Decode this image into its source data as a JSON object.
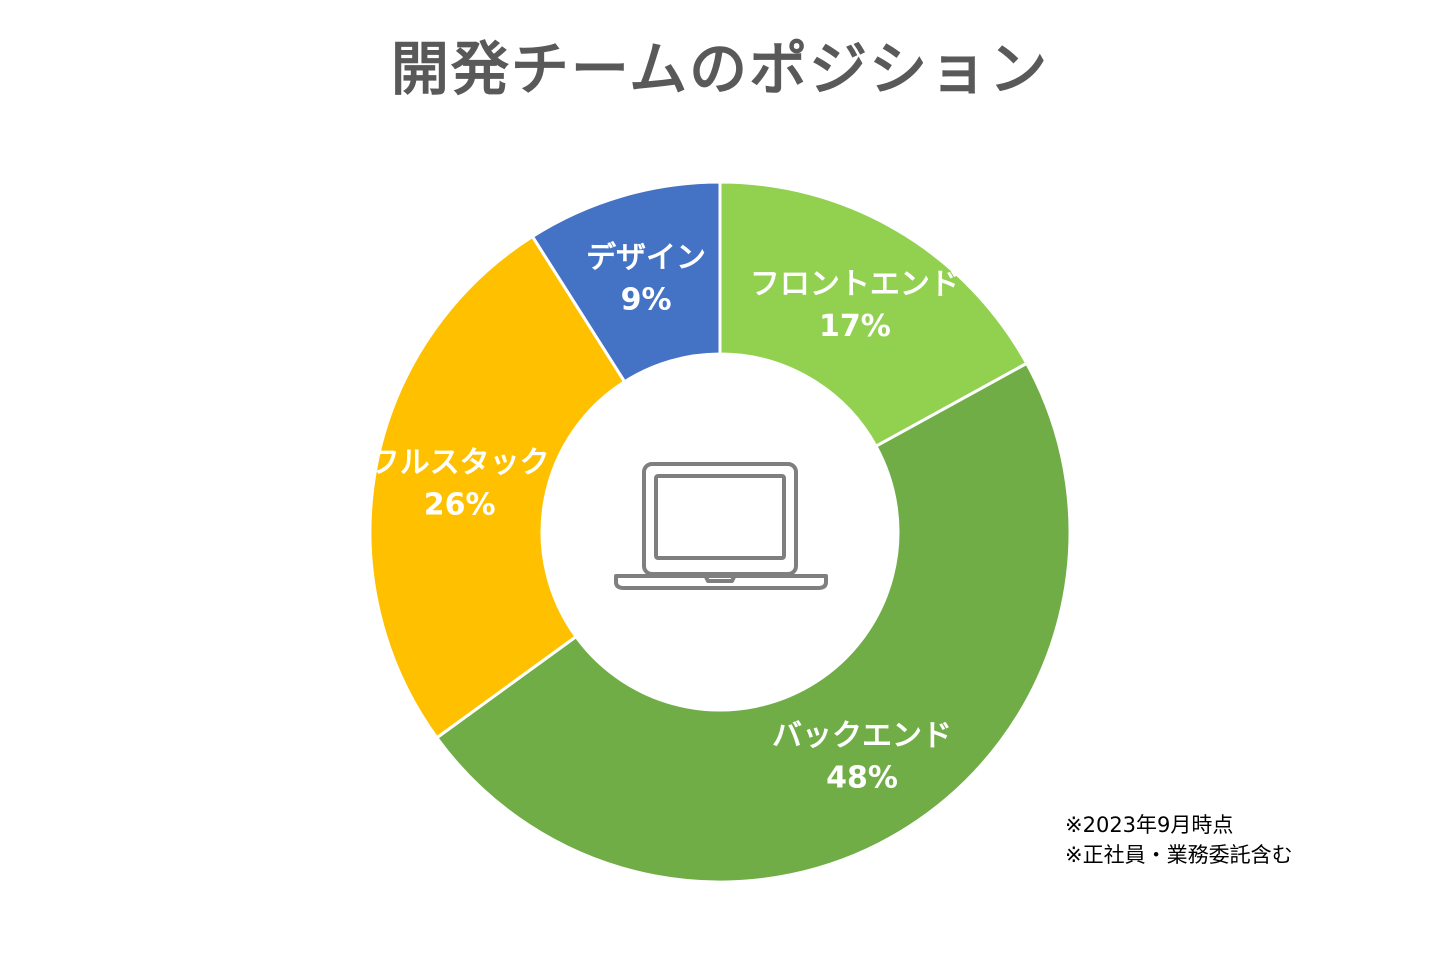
{
  "chart_data": {
    "type": "pie",
    "variant": "donut",
    "title": "開発チームのポジション",
    "slices": [
      {
        "label": "フロントエンド",
        "value": 17,
        "value_label": "17%",
        "color": "#92D050"
      },
      {
        "label": "バックエンド",
        "value": 48,
        "value_label": "48%",
        "color": "#70AD47"
      },
      {
        "label": "フルスタック",
        "value": 26,
        "value_label": "26%",
        "color": "#FFC000"
      },
      {
        "label": "デザイン",
        "value": 9,
        "value_label": "9%",
        "color": "#4472C4"
      }
    ],
    "center_icon": "laptop-icon"
  },
  "notes": [
    "※2023年9月時点",
    "※正社員・業務委託含む"
  ]
}
